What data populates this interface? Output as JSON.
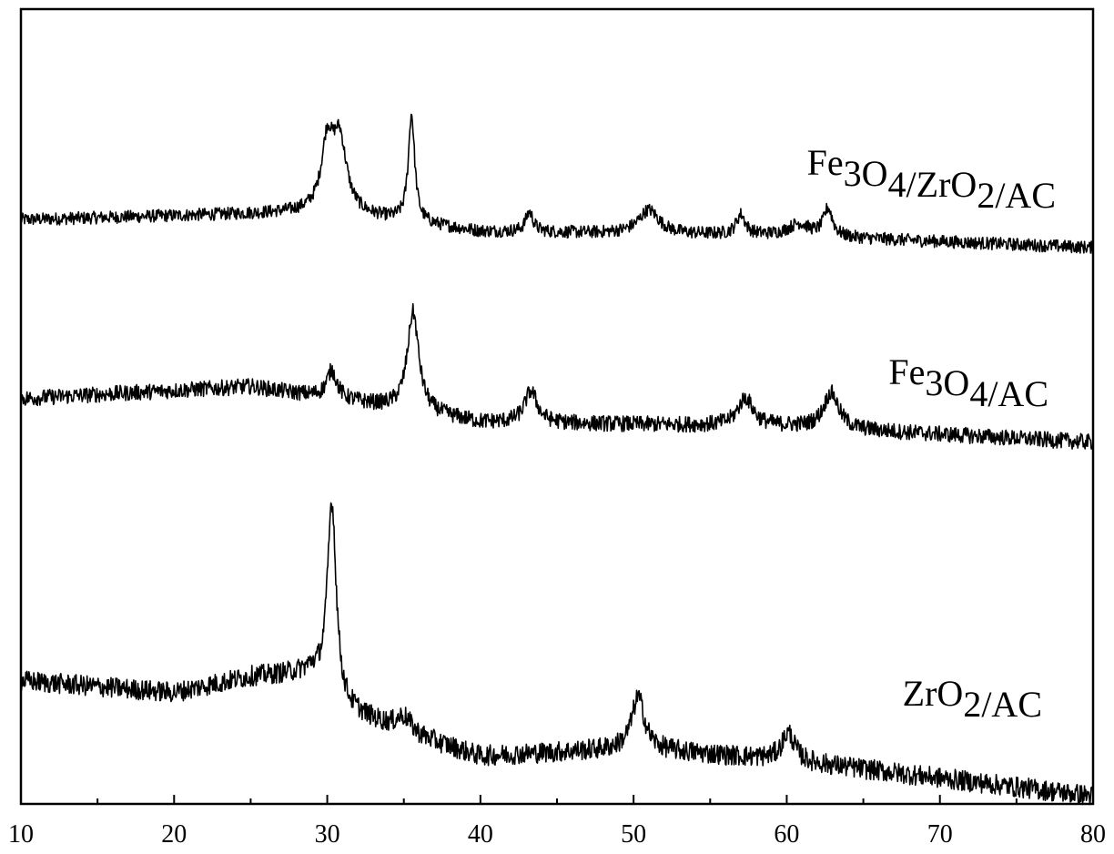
{
  "chart_data": {
    "type": "line",
    "title": "",
    "xlabel": "",
    "ylabel": "",
    "xlim": [
      10,
      80
    ],
    "x_ticks": [
      10,
      20,
      30,
      40,
      50,
      60,
      70,
      80
    ],
    "x_minor_ticks": [
      15,
      25,
      35,
      45,
      55,
      65,
      75
    ],
    "grid": false,
    "y_ticks_shown": false,
    "colors": {
      "line": "#000000",
      "axis": "#000000"
    },
    "series": [
      {
        "name": "Fe3O4/ZrO2/AC",
        "label_parts": [
          {
            "t": "Fe"
          },
          {
            "t": "3",
            "sub": true
          },
          {
            "t": "O"
          },
          {
            "t": "4",
            "sub": true
          },
          {
            "t": "/ZrO"
          },
          {
            "t": "2",
            "sub": true
          },
          {
            "t": "/AC"
          }
        ],
        "baseline": [
          [
            10,
            0.735
          ],
          [
            30,
            0.745
          ],
          [
            40,
            0.72
          ],
          [
            60,
            0.715
          ],
          [
            80,
            0.7
          ]
        ],
        "noise": 0.008,
        "peaks": [
          {
            "x": 30.0,
            "height": 0.08,
            "width": 0.45
          },
          {
            "x": 30.8,
            "height": 0.09,
            "width": 0.55
          },
          {
            "x": 35.5,
            "height": 0.135,
            "width": 0.25
          },
          {
            "x": 43.2,
            "height": 0.025,
            "width": 0.3
          },
          {
            "x": 51.0,
            "height": 0.03,
            "width": 0.8
          },
          {
            "x": 57.0,
            "height": 0.025,
            "width": 0.35
          },
          {
            "x": 60.8,
            "height": 0.015,
            "width": 0.8
          },
          {
            "x": 62.7,
            "height": 0.035,
            "width": 0.35
          }
        ]
      },
      {
        "name": "Fe3O4/AC",
        "label_parts": [
          {
            "t": "Fe"
          },
          {
            "t": "3",
            "sub": true
          },
          {
            "t": "O"
          },
          {
            "t": "4",
            "sub": true
          },
          {
            "t": "/AC"
          }
        ],
        "baseline": [
          [
            10,
            0.51
          ],
          [
            25,
            0.525
          ],
          [
            32,
            0.505
          ],
          [
            40,
            0.48
          ],
          [
            60,
            0.475
          ],
          [
            80,
            0.455
          ]
        ],
        "noise": 0.01,
        "peaks": [
          {
            "x": 30.3,
            "height": 0.035,
            "width": 0.4
          },
          {
            "x": 35.6,
            "height": 0.125,
            "width": 0.45
          },
          {
            "x": 43.3,
            "height": 0.04,
            "width": 0.5
          },
          {
            "x": 57.3,
            "height": 0.035,
            "width": 0.6
          },
          {
            "x": 62.9,
            "height": 0.045,
            "width": 0.6
          }
        ]
      },
      {
        "name": "ZrO2/AC",
        "label_parts": [
          {
            "t": "ZrO"
          },
          {
            "t": "2",
            "sub": true
          },
          {
            "t": "/AC"
          }
        ],
        "baseline": [
          [
            10,
            0.155
          ],
          [
            20,
            0.14
          ],
          [
            25,
            0.16
          ],
          [
            29,
            0.165
          ],
          [
            31,
            0.12
          ],
          [
            35,
            0.09
          ],
          [
            40,
            0.06
          ],
          [
            50,
            0.07
          ],
          [
            60,
            0.055
          ],
          [
            80,
            0.01
          ]
        ],
        "noise": 0.013,
        "peaks": [
          {
            "x": 30.3,
            "height": 0.245,
            "width": 0.35
          },
          {
            "x": 35.0,
            "height": 0.02,
            "width": 0.6
          },
          {
            "x": 50.3,
            "height": 0.065,
            "width": 0.5
          },
          {
            "x": 60.1,
            "height": 0.035,
            "width": 0.5
          }
        ]
      }
    ]
  }
}
